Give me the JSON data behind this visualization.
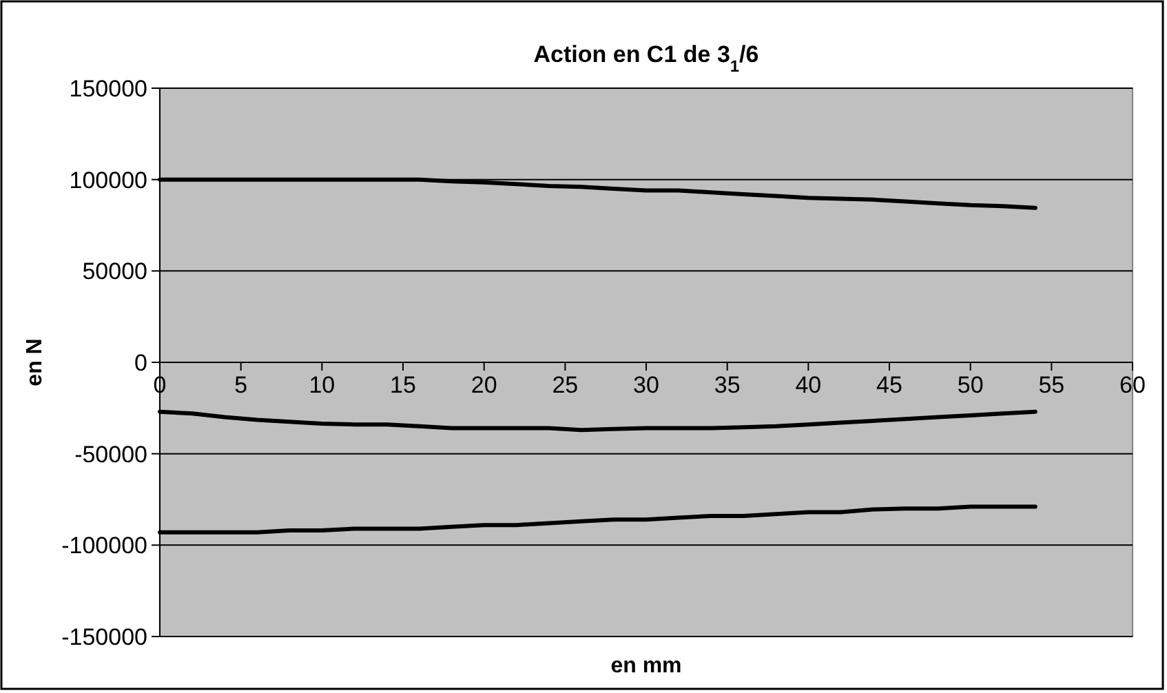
{
  "chart_data": {
    "type": "line",
    "title": "Action en C1 de 3$_{1}$/6",
    "xlabel": "en mm",
    "ylabel": "en N",
    "x": [
      0,
      2,
      4,
      6,
      8,
      10,
      12,
      14,
      16,
      18,
      20,
      22,
      24,
      26,
      28,
      30,
      32,
      34,
      36,
      38,
      40,
      42,
      44,
      46,
      48,
      50,
      52,
      54
    ],
    "series": [
      {
        "color": "#000000",
        "values": [
          100000,
          100000,
          100000,
          100000,
          100000,
          100000,
          100000,
          100000,
          100000,
          99000,
          98500,
          97500,
          96500,
          96000,
          95000,
          94000,
          94000,
          93000,
          92000,
          91000,
          90000,
          89500,
          89000,
          88000,
          87000,
          86000,
          85500,
          84500
        ]
      },
      {
        "color": "#000000",
        "values": [
          -27000,
          -28000,
          -30000,
          -31500,
          -32500,
          -33500,
          -34000,
          -34000,
          -35000,
          -36000,
          -36000,
          -36000,
          -36000,
          -37000,
          -36500,
          -36000,
          -36000,
          -36000,
          -35500,
          -35000,
          -34000,
          -33000,
          -32000,
          -31000,
          -30000,
          -29000,
          -28000,
          -27000
        ]
      },
      {
        "color": "#000000",
        "values": [
          -93000,
          -93000,
          -93000,
          -93000,
          -92000,
          -92000,
          -91000,
          -91000,
          -91000,
          -90000,
          -89000,
          -89000,
          -88000,
          -87000,
          -86000,
          -86000,
          -85000,
          -84000,
          -84000,
          -83000,
          -82000,
          -82000,
          -80500,
          -80000,
          -80000,
          -79000,
          -79000,
          -79000
        ]
      }
    ],
    "xlim": [
      0,
      60
    ],
    "xticks": [
      0,
      5,
      10,
      15,
      20,
      25,
      30,
      35,
      40,
      45,
      50,
      55,
      60
    ],
    "ylim": [
      -150000,
      150000
    ],
    "yticks": [
      -150000,
      -100000,
      -50000,
      0,
      50000,
      100000,
      150000
    ],
    "grid": "y",
    "line_style": "solid",
    "marker": "none"
  }
}
